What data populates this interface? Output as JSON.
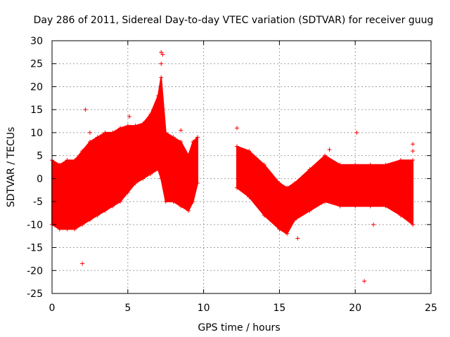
{
  "chart_data": {
    "type": "scatter",
    "title": "Day 286 of 2011, Sidereal Day-to-day VTEC variation (SDTVAR) for receiver guug",
    "xlabel": "GPS time / hours",
    "ylabel": "SDTVAR / TECUs",
    "xlim": [
      0,
      25
    ],
    "ylim": [
      -25,
      30
    ],
    "xticks": [
      "0",
      "5",
      "10",
      "15",
      "20",
      "25"
    ],
    "yticks": [
      "30",
      "25",
      "20",
      "15",
      "10",
      "5",
      "0",
      "-5",
      "-10",
      "-15",
      "-20",
      "-25"
    ],
    "grid": true,
    "marker": "+",
    "series_color": "#ff0000",
    "bands": [
      {
        "name": "segment-1",
        "x": [
          0.0,
          0.5,
          1.0,
          1.5,
          2.0,
          2.5,
          3.0,
          3.5,
          4.0,
          4.5,
          5.0,
          5.5,
          6.0,
          6.5,
          7.0,
          7.2,
          7.5,
          8.0,
          8.5,
          9.0,
          9.3,
          9.6
        ],
        "upper": [
          4,
          3,
          4,
          4,
          6,
          8,
          9,
          10,
          10,
          11,
          11.5,
          11.5,
          12,
          14,
          18,
          22,
          10,
          9,
          8,
          5,
          8,
          9
        ],
        "lower": [
          -10,
          -11,
          -11,
          -11,
          -10,
          -9,
          -8,
          -7,
          -6,
          -5,
          -3,
          -1,
          0,
          1,
          2,
          0,
          -5,
          -5,
          -6,
          -7,
          -5,
          -1
        ]
      },
      {
        "name": "segment-2",
        "x": [
          12.2,
          13.0,
          14.0,
          15.0,
          15.5,
          16.0,
          17.0,
          18.0,
          19.0,
          20.0,
          21.0,
          22.0,
          23.0,
          23.8
        ],
        "upper": [
          7,
          6,
          3,
          -1,
          -2,
          -1,
          2,
          5,
          3,
          3,
          3,
          3,
          4,
          4
        ],
        "lower": [
          -2,
          -4,
          -8,
          -11,
          -12,
          -9,
          -7,
          -5,
          -6,
          -6,
          -6,
          -6,
          -8,
          -10
        ]
      }
    ],
    "outliers": [
      {
        "x": 2.2,
        "y": 15
      },
      {
        "x": 2.0,
        "y": -18.5
      },
      {
        "x": 5.1,
        "y": 13.5
      },
      {
        "x": 7.2,
        "y": 27.5
      },
      {
        "x": 7.3,
        "y": 27
      },
      {
        "x": 7.2,
        "y": 25
      },
      {
        "x": 12.2,
        "y": 11
      },
      {
        "x": 20.1,
        "y": 10
      },
      {
        "x": 20.6,
        "y": -22.3
      },
      {
        "x": 23.8,
        "y": 7.5
      },
      {
        "x": 23.8,
        "y": 6
      },
      {
        "x": 18.3,
        "y": 6.3
      },
      {
        "x": 16.2,
        "y": -13
      },
      {
        "x": 21.2,
        "y": -10
      },
      {
        "x": 2.5,
        "y": 10
      },
      {
        "x": 8.5,
        "y": 10.5
      }
    ]
  }
}
